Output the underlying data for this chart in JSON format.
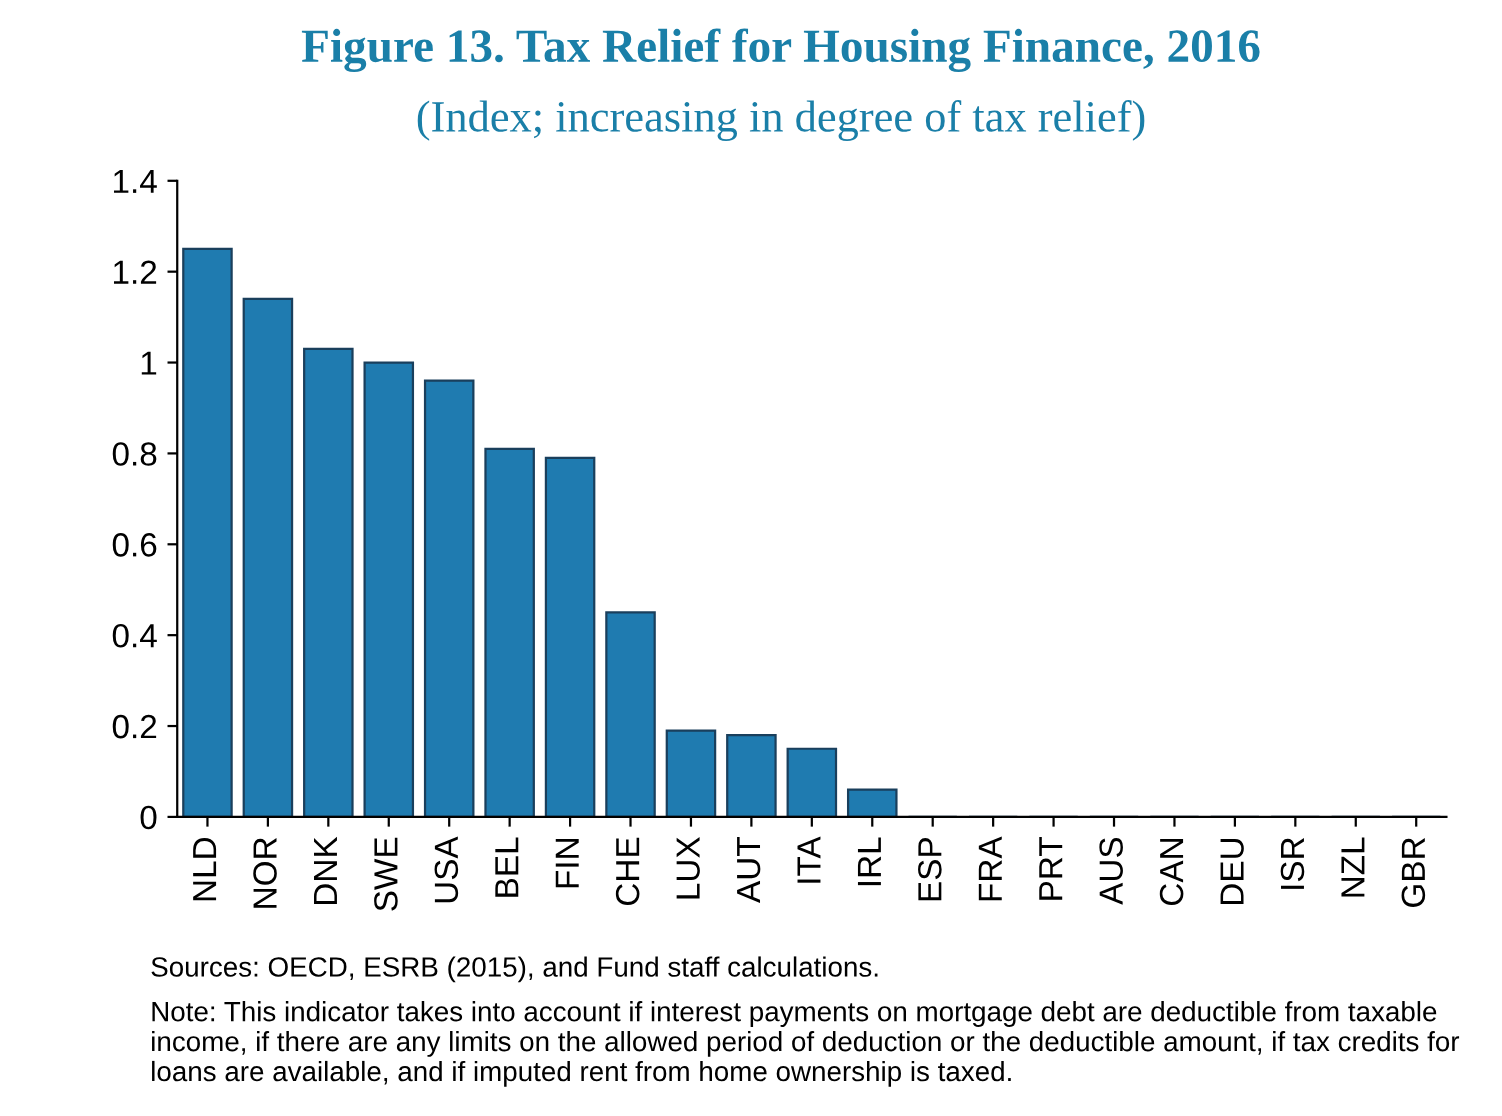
{
  "chart_data": {
    "type": "bar",
    "title": "Figure 13. Tax Relief for Housing Finance, 2016",
    "subtitle": "(Index; increasing in degree of tax relief)",
    "categories": [
      "NLD",
      "NOR",
      "DNK",
      "SWE",
      "USA",
      "BEL",
      "FIN",
      "CHE",
      "LUX",
      "AUT",
      "ITA",
      "IRL",
      "ESP",
      "FRA",
      "PRT",
      "AUS",
      "CAN",
      "DEU",
      "ISR",
      "NZL",
      "GBR"
    ],
    "values": [
      1.25,
      1.14,
      1.03,
      1.0,
      0.96,
      0.81,
      0.79,
      0.45,
      0.19,
      0.18,
      0.15,
      0.06,
      0,
      0,
      0,
      0,
      0,
      0,
      0,
      0,
      0
    ],
    "color": "#1f7bb0",
    "ylim": [
      0,
      1.4
    ],
    "yticks": [
      0,
      0.2,
      0.4,
      0.6,
      0.8,
      1,
      1.2,
      1.4
    ],
    "grid": false,
    "legend": false,
    "annotations": [
      "Sources: OECD, ESRB (2015), and Fund staff calculations.",
      "Note: This indicator takes into account if interest payments on mortgage debt are deductible from taxable income, if there are any limits on the allowed period of deduction or the deductible amount, if tax credits for loans are available, and if imputed rent from home ownership is taxed."
    ]
  }
}
